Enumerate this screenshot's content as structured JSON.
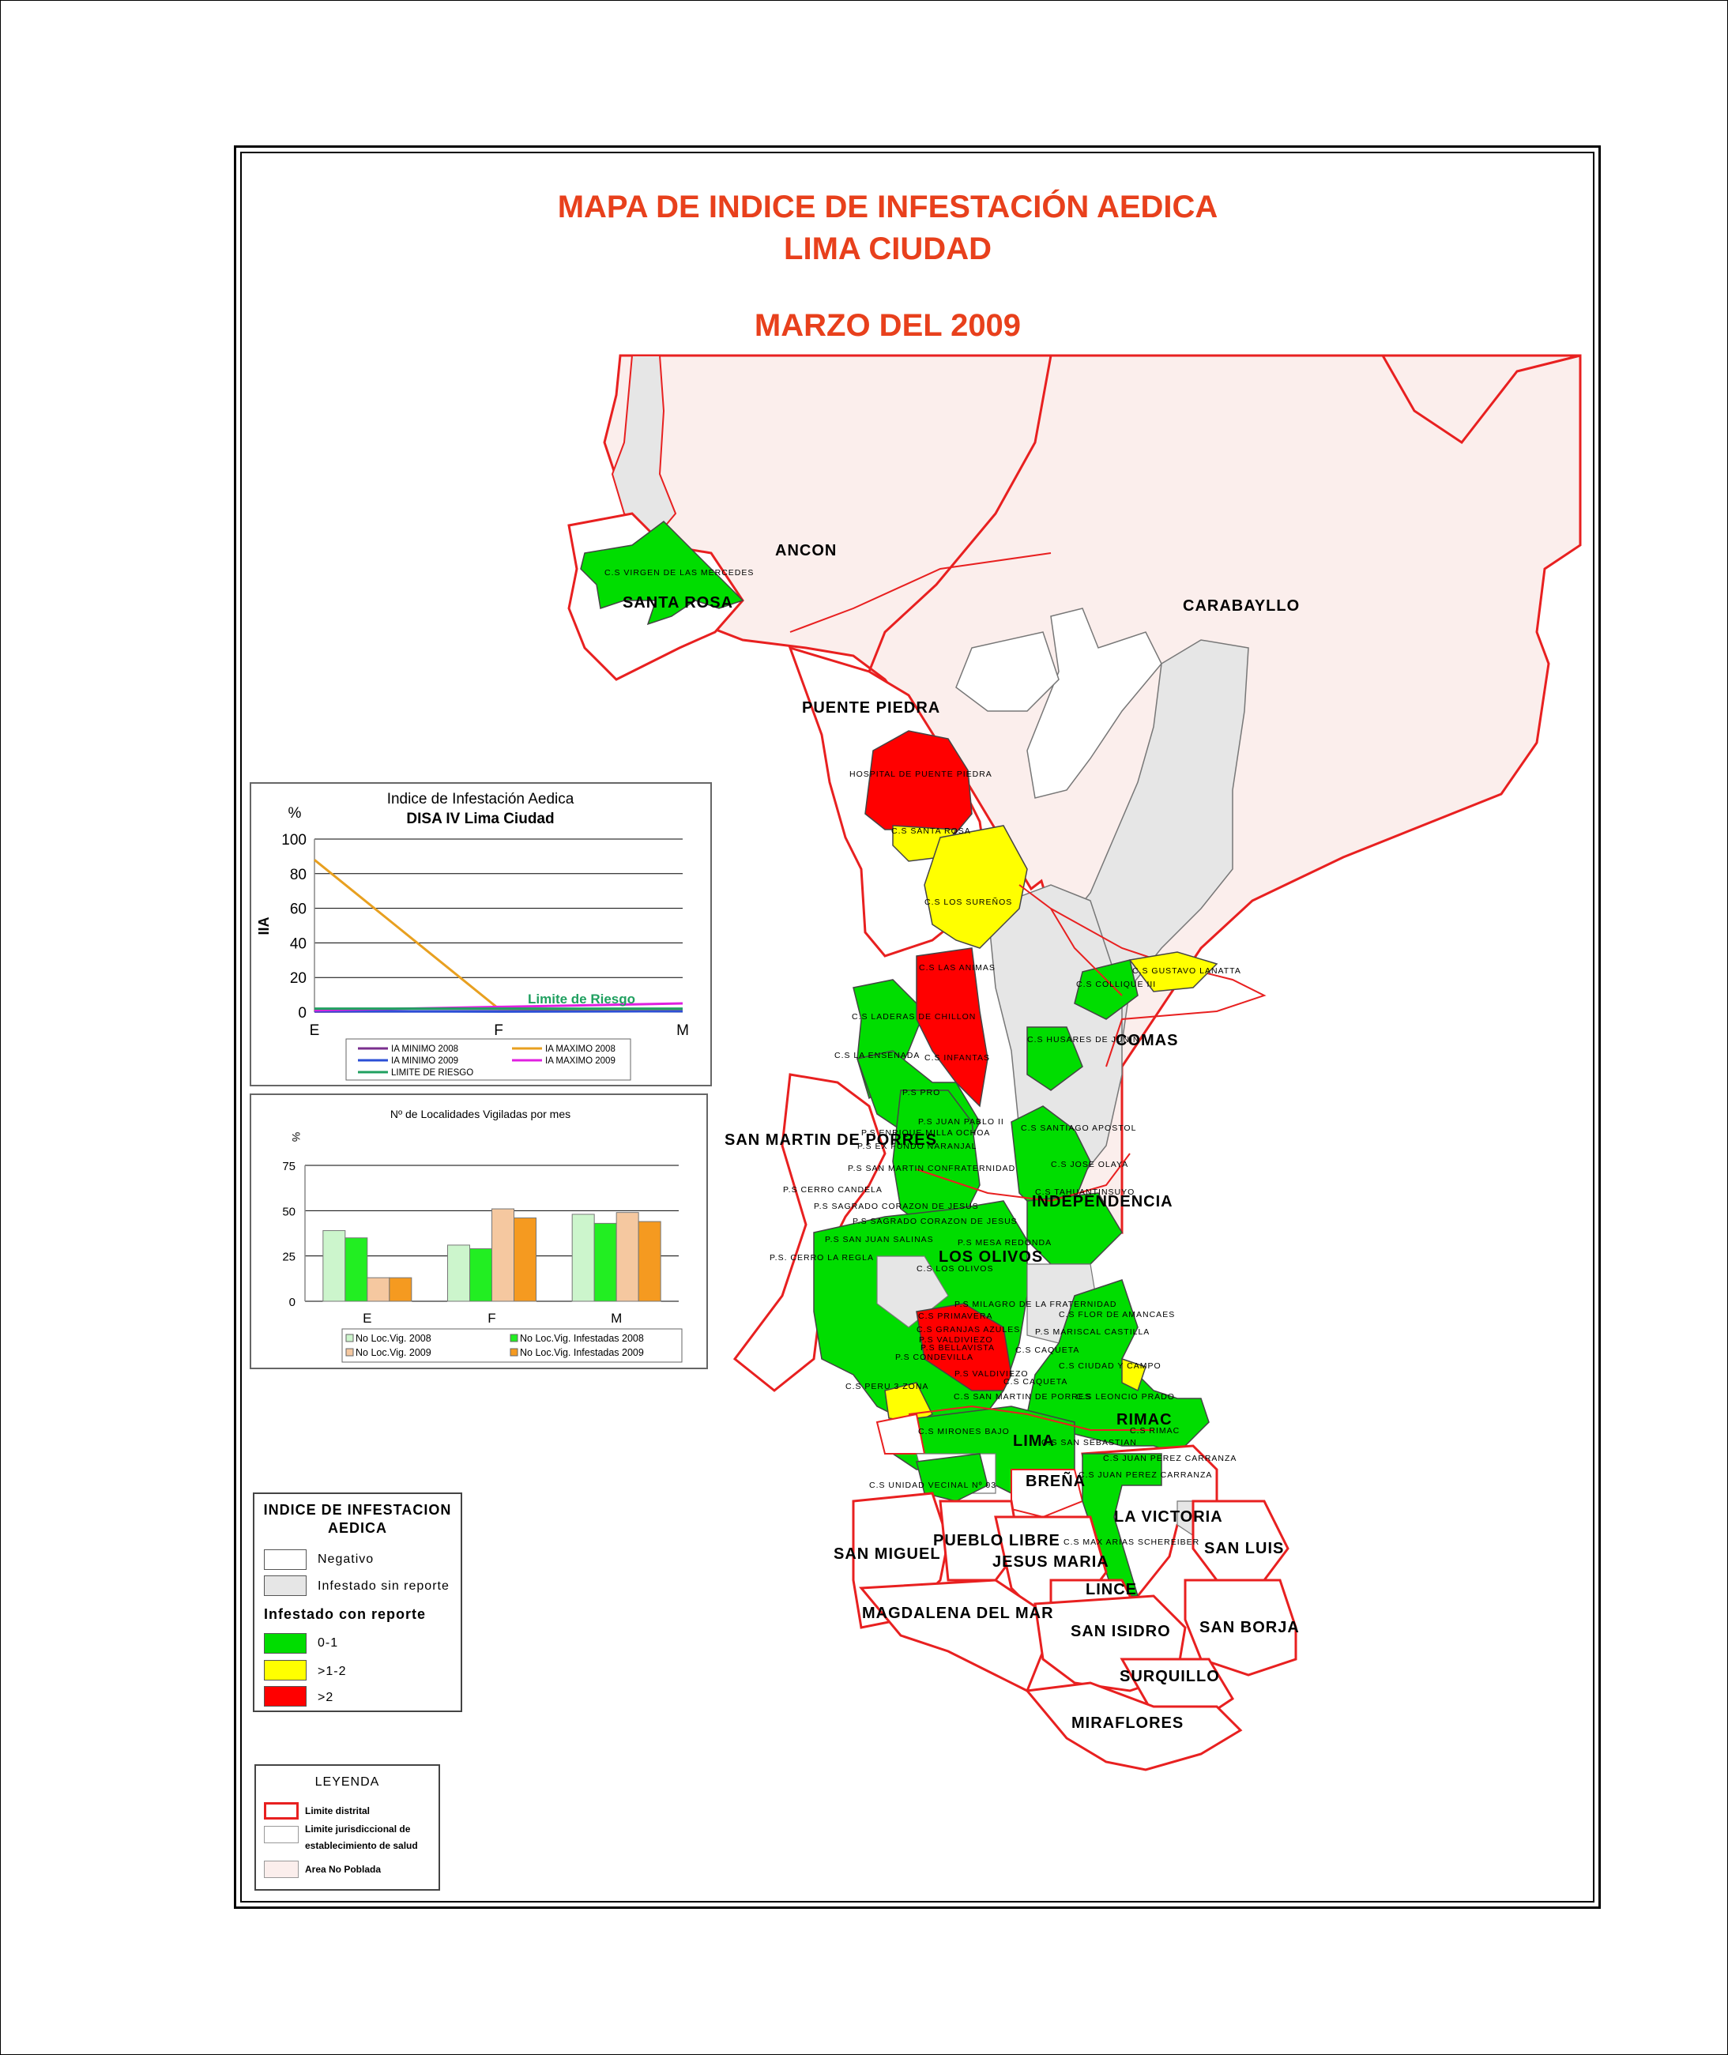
{
  "title": {
    "line1": "MAPA DE INDICE DE INFESTACIÓN AEDICA",
    "line2": "LIMA CIUDAD",
    "line3": "MARZO DEL 2009"
  },
  "colors": {
    "negativo": "#ffffff",
    "sin_reporte": "#e6e6e6",
    "range_0_1": "#00dd00",
    "range_1_2": "#ffff00",
    "range_gt_2": "#ff0000",
    "limite_distrital": "#e82020",
    "area_no_poblada": "#fbeeec"
  },
  "districts": {
    "ancon": "ANCON",
    "santa_rosa": "SANTA ROSA",
    "carabayllo": "CARABAYLLO",
    "puente_piedra": "PUENTE PIEDRA",
    "comas": "COMAS",
    "san_martin": "SAN MARTIN DE PORRES",
    "independencia": "INDEPENDENCIA",
    "los_olivos": "LOS OLIVOS",
    "rimac": "RIMAC",
    "lima": "LIMA",
    "brena": "BREÑA",
    "la_victoria": "LA VICTORIA",
    "pueblo_libre": "PUEBLO LIBRE",
    "jesus_maria": "JESUS MARIA",
    "san_miguel": "SAN MIGUEL",
    "san_luis": "SAN LUIS",
    "lince": "LINCE",
    "magdalena": "MAGDALENA DEL MAR",
    "san_isidro": "SAN ISIDRO",
    "san_borja": "SAN BORJA",
    "surquillo": "SURQUILLO",
    "miraflores": "MIRAFLORES"
  },
  "centers": {
    "c01": "C.S VIRGEN DE LAS MERCEDES",
    "c02": "HOSPITAL DE PUENTE PIEDRA",
    "c03": "C.S SANTA ROSA",
    "c04": "C.S LOS SUREÑOS",
    "c05": "C.S LAS ANIMAS",
    "c06": "C.S GUSTAVO LANATTA",
    "c07": "C.S COLLIQUE III",
    "c08": "C.S LADERAS DE CHILLON",
    "c09": "C.S HUSARES DE JUNIN",
    "c10": "C.S LA ENSENADA",
    "c11": "C.S INFANTAS",
    "c12": "P.S PRO",
    "c13": "P.S JUAN PABLO II",
    "c14": "P.S ENRIQUE MILLA OCHOA",
    "c15": "C.S SANTIAGO APOSTOL",
    "c16": "P.S EX FUNDO NARANJAL",
    "c17": "C.S JOSE OLAYA",
    "c18": "P.S SAN MARTIN CONFRATERNIDAD",
    "c19": "P.S CERRO CANDELA",
    "c20": "C.S TAHUANTINSUYO",
    "c21": "P.S SAGRADO CORAZON DE JESUS",
    "c22": "P.S SAGRADO CORAZON DE JESUS",
    "c23": "P.S SAN JUAN SALINAS",
    "c24": "P.S MESA REDONDA",
    "c25": "P.S. CERRO LA REGLA",
    "c26": "C.S LOS OLIVOS",
    "c27": "P.S MILAGRO DE LA FRATERNIDAD",
    "c28": "C.S FLOR DE AMANCAES",
    "c29": "C.S PRIMAVERA",
    "c30": "C.S GRANJAS AZULES",
    "c31": "P.S MARISCAL CASTILLA",
    "c32": "P.S VALDIVIEZO",
    "c33": "P.S BELLAVISTA",
    "c34": "C.S CAQUETA",
    "c35": "P.S CONDEVILLA",
    "c36": "C.S CIUDAD Y CAMPO",
    "c37": "P.S VALDIVIEZO",
    "c38": "C.S PERU 3 ZONA",
    "c39": "C.S CAQUETA",
    "c40": "C.S SAN MARTIN DE PORRES",
    "c41": "C.S LEONCIO PRADO",
    "c42": "C.S RIMAC",
    "c43": "C.S MIRONES BAJO",
    "c44": "C.S SAN SEBASTIAN",
    "c45": "C.S JUAN PEREZ CARRANZA",
    "c46": "C.S JUAN PEREZ CARRANZA",
    "c47": "C.S UNIDAD VECINAL Nº 03",
    "c48": "C.S MAX ARIAS SCHEREIBER"
  },
  "chart_data": [
    {
      "type": "line",
      "title": "Indice de Infestación Aedica",
      "subtitle": "DISA IV Lima Ciudad",
      "ylabel": "IIA",
      "yunit": "%",
      "ylim": [
        0,
        100
      ],
      "yticks": [
        0,
        20,
        40,
        60,
        80,
        100
      ],
      "categories": [
        "E",
        "F",
        "M"
      ],
      "series": [
        {
          "name": "IA MINIMO 2008",
          "color": "#7a2f8e",
          "values": [
            0.3,
            0.5,
            1.0
          ]
        },
        {
          "name": "IA MAXIMO 2008",
          "color": "#e8a020",
          "values": [
            88,
            2,
            1.5
          ]
        },
        {
          "name": "IA MINIMO 2009",
          "color": "#2b4fd6",
          "values": [
            0.5,
            0.3,
            0.5
          ]
        },
        {
          "name": "IA MAXIMO 2009",
          "color": "#e020e0",
          "values": [
            1.0,
            3,
            5
          ]
        },
        {
          "name": "LIMITE DE RIESGO",
          "color": "#20a060",
          "values": [
            2,
            2,
            2
          ]
        }
      ],
      "annotation": "Limite de Riesgo",
      "grid": true,
      "legend_position": "bottom"
    },
    {
      "type": "bar",
      "title": "Nº de Localidades Vigiladas por mes",
      "yunit": "%",
      "ylim": [
        0,
        75
      ],
      "yticks": [
        0,
        25,
        50,
        75
      ],
      "categories": [
        "E",
        "F",
        "M"
      ],
      "series": [
        {
          "name": "No Loc.Vig. 2008",
          "color": "#ccf5cc",
          "values": [
            39,
            31,
            48
          ]
        },
        {
          "name": "No Loc.Vig. Infestadas 2008",
          "color": "#22ee22",
          "values": [
            35,
            29,
            43
          ]
        },
        {
          "name": "No Loc.Vig. 2009",
          "color": "#f5c8a0",
          "values": [
            13,
            51,
            49
          ]
        },
        {
          "name": "No Loc.Vig. Infestadas 2009",
          "color": "#f59a20",
          "values": [
            13,
            46,
            44
          ]
        }
      ],
      "grid": true,
      "legend_position": "bottom"
    }
  ],
  "legend_iia": {
    "heading1": "INDICE DE INFESTACION",
    "heading2": "AEDICA",
    "negativo": "Negativo",
    "sin_reporte": "Infestado sin reporte",
    "con_reporte": "Infestado con reporte",
    "r1": "0-1",
    "r2": ">1-2",
    "r3": ">2"
  },
  "legend_leyenda": {
    "heading": "LEYENDA",
    "limite_distrital": "Limite distrital",
    "limite_juris_1": "Limite jurisdiccional de",
    "limite_juris_2": "establecimiento de salud",
    "area_no_poblada": "Area No Poblada"
  }
}
